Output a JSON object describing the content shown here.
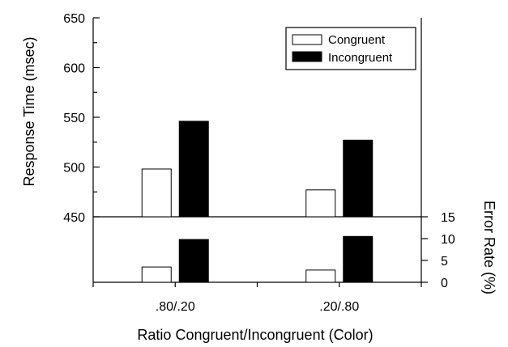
{
  "chart_data": {
    "type": "bar",
    "categories": [
      ".80/.20",
      ".20/.80"
    ],
    "xlabel": "Ratio Congruent/Incongruent (Color)",
    "legend_position": "top-right",
    "top_panel": {
      "ylabel": "Response Time (msec)",
      "ylim": [
        450,
        650
      ],
      "yticks": [
        450,
        500,
        550,
        600,
        650
      ],
      "series": [
        {
          "name": "Congruent",
          "color": "#ffffff",
          "values": [
            498,
            477
          ]
        },
        {
          "name": "Incongruent",
          "color": "#000000",
          "values": [
            546,
            527
          ]
        }
      ]
    },
    "bottom_panel": {
      "ylabel": "Error Rate (%)",
      "ylim": [
        0,
        15
      ],
      "yticks": [
        0,
        5,
        10,
        15
      ],
      "series": [
        {
          "name": "Congruent",
          "color": "#ffffff",
          "values": [
            3.5,
            2.8
          ]
        },
        {
          "name": "Incongruent",
          "color": "#000000",
          "values": [
            9.8,
            10.5
          ]
        }
      ]
    }
  }
}
